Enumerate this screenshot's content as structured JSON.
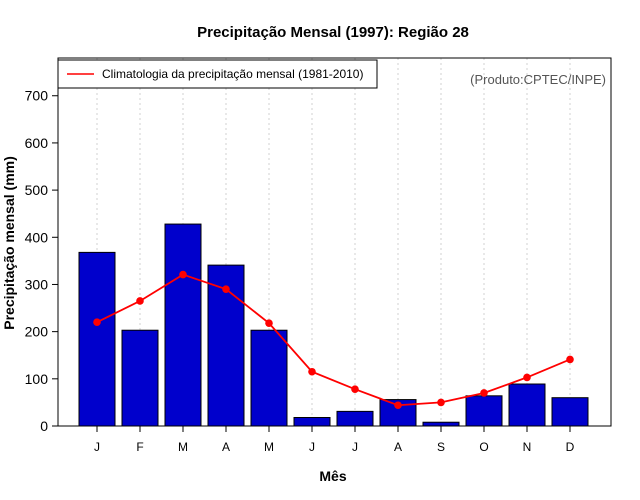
{
  "chart_data": {
    "type": "bar",
    "title": "Precipitação Mensal (1997): Região 28",
    "xlabel": "Mês",
    "ylabel": "Precipitação mensal (mm)",
    "categories": [
      "J",
      "F",
      "M",
      "A",
      "M",
      "J",
      "J",
      "A",
      "S",
      "O",
      "N",
      "D"
    ],
    "ylim": [
      0,
      780
    ],
    "yticks": [
      0,
      100,
      200,
      300,
      400,
      500,
      600,
      700
    ],
    "grid": "vertical-dotted",
    "series": [
      {
        "name": "Precipitação mensal 1997",
        "kind": "bar",
        "color": "#0000cc",
        "values": [
          368,
          203,
          428,
          341,
          203,
          18,
          31,
          56,
          8,
          64,
          89,
          60
        ]
      },
      {
        "name": "Climatologia da precipitação mensal (1981-2010)",
        "kind": "line",
        "color": "#ff0000",
        "values": [
          220,
          265,
          321,
          290,
          218,
          115,
          78,
          44,
          50,
          70,
          103,
          141
        ]
      }
    ],
    "legend": {
      "position": "top-left",
      "entries": [
        "Climatologia da precipitação mensal (1981-2010)"
      ]
    },
    "annotation": "(Produto:CPTEC/INPE)"
  }
}
